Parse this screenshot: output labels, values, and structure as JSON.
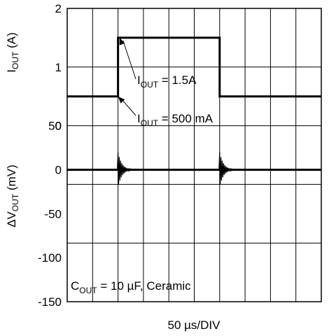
{
  "chart_data": {
    "type": "line",
    "x_axis": {
      "label": "50 µs/DIV",
      "divisions": 10,
      "units_per_division_us": 50,
      "range_us": [
        0,
        500
      ]
    },
    "top_panel": {
      "ylabel_main": "I",
      "ylabel_sub": "OUT",
      "ylabel_unit": " (A)",
      "ylim": [
        0,
        2
      ],
      "ticks": [
        "2",
        "1",
        "0"
      ],
      "tick_values": [
        2,
        1,
        0
      ],
      "series": [
        {
          "x_us": [
            0,
            100,
            100,
            300,
            300,
            500
          ],
          "y": [
            0.5,
            0.5,
            1.5,
            1.5,
            0.5,
            0.5
          ]
        }
      ],
      "annotations": [
        {
          "main": "I",
          "sub": "OUT",
          "value": " = 1.5A",
          "points_to_us": 103,
          "points_to_y": 1.5
        },
        {
          "main": "I",
          "sub": "OUT",
          "value": " = 500 mA",
          "points_to_us": 100,
          "points_to_y": 0.5
        }
      ]
    },
    "bottom_panel": {
      "ylabel_main": "ΔV",
      "ylabel_sub": "OUT",
      "ylabel_unit": " (mV)",
      "ylim": [
        -150,
        50
      ],
      "ticks": [
        "50",
        "0",
        "-50",
        "-100",
        "-150"
      ],
      "tick_values": [
        50,
        0,
        -50,
        -100,
        -150
      ],
      "series": [
        {
          "baseline_mV": 0,
          "transients_at_us": [
            100,
            300
          ],
          "transient_peak_mV": [
            20,
            20
          ]
        }
      ],
      "annotation": {
        "main": "C",
        "sub": "OUT",
        "value": " = 10 µF, Ceramic"
      }
    },
    "grid": true
  }
}
